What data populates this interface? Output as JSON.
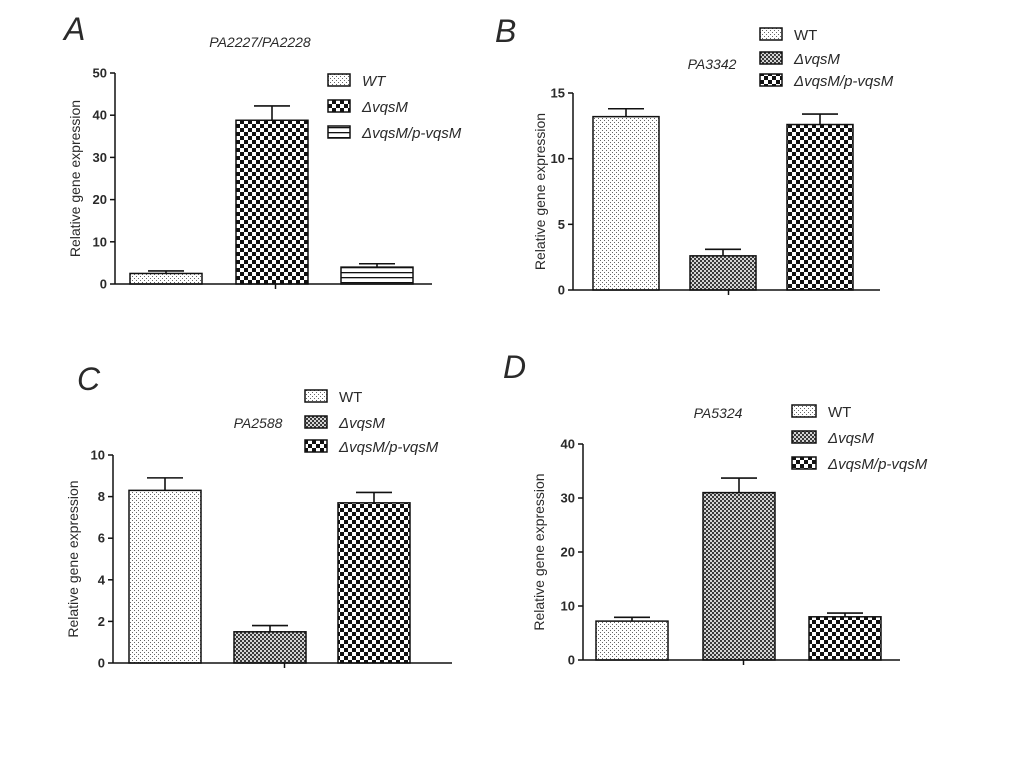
{
  "chart_data": [
    {
      "type": "bar",
      "panel": "A",
      "title": "PA2227/PA2228",
      "ylabel": "Relative gene expression",
      "ylim": [
        0,
        50
      ],
      "yticks": [
        0,
        10,
        20,
        30,
        40,
        50
      ],
      "categories": [
        "WT",
        "ΔvqsM",
        "ΔvqsM/p-vqsM"
      ],
      "values": [
        2.5,
        38.8,
        4.0
      ],
      "errors": [
        0.6,
        3.4,
        0.8
      ],
      "legend": [
        "WT",
        "ΔvqsM",
        "ΔvqsM/p-vqsM"
      ],
      "legend_italic": true,
      "legend_position": "top-right",
      "patterns": [
        "dots",
        "checker",
        "hstripes"
      ]
    },
    {
      "type": "bar",
      "panel": "B",
      "title": "PA3342",
      "ylabel": "Relative gene expression",
      "ylim": [
        0,
        15
      ],
      "yticks": [
        0,
        5,
        10,
        15
      ],
      "categories": [
        "WT",
        "ΔvqsM",
        "ΔvqsM/p-vqsM"
      ],
      "values": [
        13.2,
        2.6,
        12.6
      ],
      "errors": [
        0.6,
        0.5,
        0.8
      ],
      "legend": [
        "WT",
        "ΔvqsM",
        "ΔvqsM/p-vqsM"
      ],
      "legend_italic": false,
      "legend_position": "top-right",
      "patterns": [
        "dots",
        "dense",
        "checker"
      ]
    },
    {
      "type": "bar",
      "panel": "C",
      "title": "PA2588",
      "ylabel": "Relative gene expression",
      "ylim": [
        0,
        10
      ],
      "yticks": [
        0,
        2,
        4,
        6,
        8,
        10
      ],
      "categories": [
        "WT",
        "ΔvqsM",
        "ΔvqsM/p-vqsM"
      ],
      "values": [
        8.3,
        1.5,
        7.7
      ],
      "errors": [
        0.6,
        0.3,
        0.5
      ],
      "legend": [
        "WT",
        "ΔvqsM",
        "ΔvqsM/p-vqsM"
      ],
      "legend_italic": false,
      "legend_position": "top-right",
      "patterns": [
        "dots",
        "dense",
        "checker"
      ]
    },
    {
      "type": "bar",
      "panel": "D",
      "title": "PA5324",
      "ylabel": "Relative gene expression",
      "ylim": [
        0,
        40
      ],
      "yticks": [
        0,
        10,
        20,
        30,
        40
      ],
      "categories": [
        "WT",
        "ΔvqsM",
        "ΔvqsM/p-vqsM"
      ],
      "values": [
        7.2,
        31.0,
        8.0
      ],
      "errors": [
        0.7,
        2.7,
        0.7
      ],
      "legend": [
        "WT",
        "ΔvqsM",
        "ΔvqsM/p-vqsM"
      ],
      "legend_italic": false,
      "legend_position": "top-right",
      "patterns": [
        "dots",
        "dense",
        "checker"
      ]
    }
  ]
}
